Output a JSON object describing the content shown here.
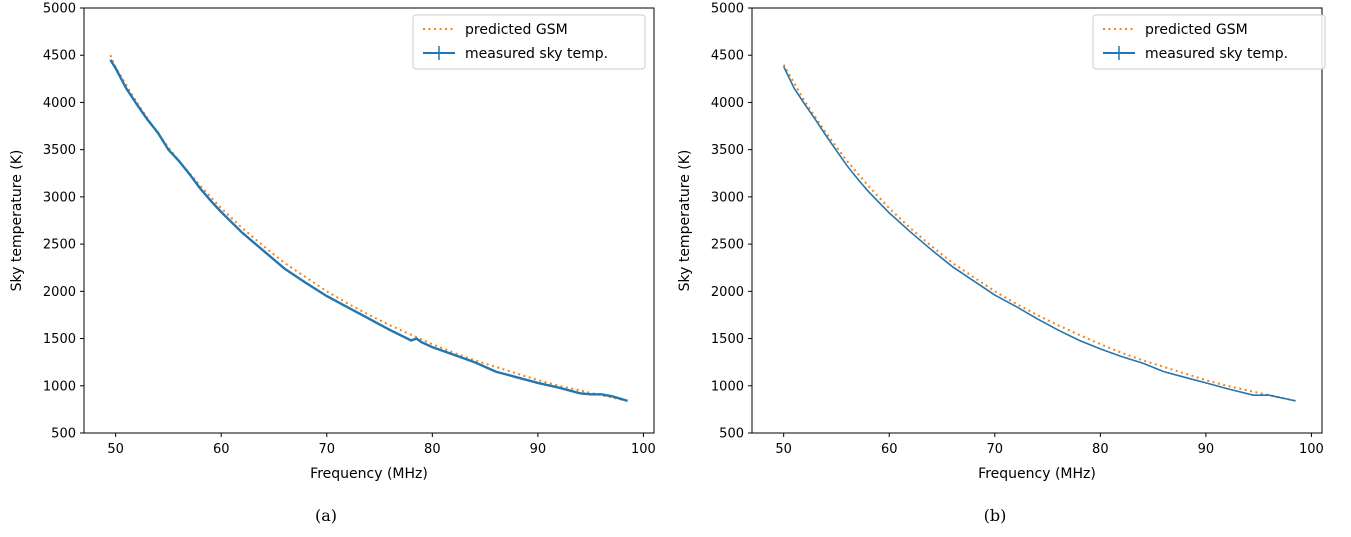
{
  "chart_data": [
    {
      "type": "line",
      "caption": "(a)",
      "xlabel": "Frequency (MHz)",
      "ylabel": "Sky temperature (K)",
      "xlim": [
        47,
        101
      ],
      "ylim": [
        500,
        5000
      ],
      "xticks": [
        50,
        60,
        70,
        80,
        90,
        100
      ],
      "yticks": [
        500,
        1000,
        1500,
        2000,
        2500,
        3000,
        3500,
        4000,
        4500,
        5000
      ],
      "legend_position": "top-right",
      "grid": false,
      "series": [
        {
          "name": "predicted GSM",
          "style": "dotted",
          "color": "#ff7f0e",
          "x": [
            49.5,
            50,
            52,
            54,
            56,
            58,
            60,
            62,
            64,
            66,
            68,
            70,
            72,
            74,
            76,
            78,
            80,
            82,
            84,
            86,
            88,
            90,
            92,
            94,
            96,
            98.5
          ],
          "y": [
            4500,
            4370,
            4000,
            3670,
            3380,
            3120,
            2880,
            2670,
            2480,
            2300,
            2150,
            2000,
            1870,
            1750,
            1640,
            1540,
            1440,
            1350,
            1270,
            1200,
            1130,
            1060,
            1000,
            950,
            900,
            840
          ]
        },
        {
          "name": "measured sky temp.",
          "style": "solid",
          "color": "#1f77b4",
          "x": [
            49.5,
            50,
            51,
            52,
            53,
            54,
            55,
            55.5,
            56,
            57,
            58,
            59,
            60,
            62,
            64,
            66,
            68,
            70,
            72,
            74,
            76,
            78,
            78.5,
            79,
            80,
            82,
            84,
            85,
            86,
            88,
            90,
            92,
            94,
            95,
            96,
            97,
            98.5
          ],
          "y": [
            4450,
            4360,
            4150,
            3980,
            3820,
            3680,
            3500,
            3440,
            3380,
            3240,
            3090,
            2960,
            2840,
            2620,
            2430,
            2240,
            2090,
            1950,
            1830,
            1710,
            1590,
            1480,
            1500,
            1460,
            1410,
            1330,
            1250,
            1200,
            1150,
            1090,
            1030,
            980,
            920,
            910,
            910,
            890,
            840
          ]
        }
      ]
    },
    {
      "type": "line",
      "caption": "(b)",
      "xlabel": "Frequency (MHz)",
      "ylabel": "Sky temperature (K)",
      "xlim": [
        47,
        101
      ],
      "ylim": [
        500,
        5000
      ],
      "xticks": [
        50,
        60,
        70,
        80,
        90,
        100
      ],
      "yticks": [
        500,
        1000,
        1500,
        2000,
        2500,
        3000,
        3500,
        4000,
        4500,
        5000
      ],
      "legend_position": "top-right",
      "grid": false,
      "series": [
        {
          "name": "predicted GSM",
          "style": "dotted",
          "color": "#ff7f0e",
          "x": [
            50,
            52,
            54,
            56,
            58,
            60,
            62,
            64,
            66,
            68,
            70,
            72,
            74,
            76,
            78,
            80,
            82,
            84,
            86,
            88,
            90,
            92,
            94,
            96,
            98.5
          ],
          "y": [
            4400,
            4010,
            3680,
            3380,
            3120,
            2880,
            2670,
            2480,
            2300,
            2150,
            2000,
            1870,
            1750,
            1640,
            1540,
            1440,
            1350,
            1270,
            1200,
            1130,
            1060,
            1000,
            950,
            900,
            840
          ]
        },
        {
          "name": "measured sky temp.",
          "style": "solid",
          "color": "#1f77b4",
          "x": [
            50,
            51,
            52,
            53,
            54,
            55,
            56,
            57,
            58,
            60,
            62,
            64,
            66,
            68,
            70,
            72,
            74,
            76,
            78,
            80,
            82,
            84,
            86,
            88,
            90,
            92,
            94.5,
            96,
            98.5
          ],
          "y": [
            4380,
            4150,
            3980,
            3820,
            3650,
            3490,
            3330,
            3190,
            3060,
            2830,
            2630,
            2440,
            2260,
            2110,
            1960,
            1840,
            1710,
            1590,
            1480,
            1390,
            1310,
            1240,
            1150,
            1090,
            1030,
            970,
            900,
            900,
            840
          ]
        }
      ]
    }
  ]
}
